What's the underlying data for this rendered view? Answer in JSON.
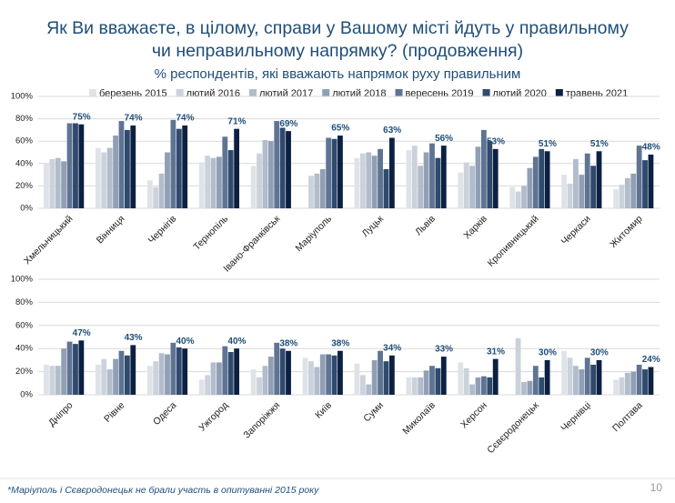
{
  "header": {
    "title": [
      "Як Ви вважаєте, в цілому, справи у Вашому місті йдуть у правильному",
      "чи неправильному напрямку? (продовження)"
    ],
    "subtitle": "% респондентів, які вважають напрямок руху правильним"
  },
  "chart_data": [
    {
      "type": "bar",
      "ylim": [
        0,
        100
      ],
      "yticks": [
        {
          "value": 0,
          "label": "0%"
        },
        {
          "value": 20,
          "label": "20%"
        },
        {
          "value": 40,
          "label": "40%"
        },
        {
          "value": 60,
          "label": "60%"
        },
        {
          "value": 80,
          "label": "80%"
        },
        {
          "value": 100,
          "label": "100%"
        }
      ],
      "categories": [
        "Хмельницький",
        "Вінниця",
        "Чернігів",
        "Тернопіль",
        "Івано-Франківськ",
        "Маріуполь",
        "Луцьк",
        "Львів",
        "Харків",
        "Кропивницький",
        "Черкаси",
        "Житомир"
      ],
      "series": [
        {
          "name": "березень 2015",
          "color": "#dfe3e8",
          "values": [
            40,
            54,
            25,
            41,
            38,
            null,
            45,
            52,
            32,
            19,
            30,
            17
          ]
        },
        {
          "name": "лютий 2016",
          "color": "#cbd2db",
          "values": [
            44,
            50,
            19,
            47,
            49,
            29,
            49,
            56,
            41,
            15,
            22,
            21
          ]
        },
        {
          "name": "лютий 2017",
          "color": "#b2bccb",
          "values": [
            45,
            54,
            31,
            45,
            61,
            31,
            50,
            38,
            38,
            20,
            44,
            27
          ]
        },
        {
          "name": "лютий 2018",
          "color": "#919fb4",
          "values": [
            42,
            65,
            50,
            46,
            60,
            35,
            47,
            50,
            55,
            36,
            30,
            31
          ]
        },
        {
          "name": "вересень 2019",
          "color": "#5f7493",
          "values": [
            76,
            78,
            79,
            64,
            78,
            63,
            53,
            58,
            70,
            46,
            49,
            56
          ]
        },
        {
          "name": "лютий 2020",
          "color": "#2f4a6d",
          "values": [
            76,
            70,
            71,
            52,
            72,
            62,
            35,
            45,
            60,
            53,
            38,
            43
          ]
        },
        {
          "name": "травень 2021",
          "color": "#0c2042",
          "values": [
            75,
            74,
            74,
            71,
            69,
            65,
            63,
            56,
            53,
            51,
            51,
            48
          ],
          "value_labels": [
            "75%",
            "74%",
            "74%",
            "71%",
            "69%",
            "65%",
            "63%",
            "56%",
            "53%",
            "51%",
            "51%",
            "48%"
          ]
        }
      ]
    },
    {
      "type": "bar",
      "ylim": [
        0,
        100
      ],
      "yticks": [
        {
          "value": 0,
          "label": "0%"
        },
        {
          "value": 20,
          "label": "20%"
        },
        {
          "value": 40,
          "label": "40%"
        },
        {
          "value": 60,
          "label": "60%"
        },
        {
          "value": 80,
          "label": "80%"
        },
        {
          "value": 100,
          "label": "100%"
        }
      ],
      "categories": [
        "Дніпро",
        "Рівне",
        "Одеса",
        "Ужгород",
        "Запоріжжя",
        "Київ",
        "Суми",
        "Миколаїв",
        "Херсон",
        "Сєвєродонецьк",
        "Чернівці",
        "Полтава"
      ],
      "series": [
        {
          "color": "#dfe3e8",
          "values": [
            26,
            26,
            25,
            13,
            22,
            32,
            27,
            15,
            28,
            null,
            38,
            13
          ]
        },
        {
          "color": "#cbd2db",
          "values": [
            25,
            31,
            29,
            17,
            15,
            29,
            17,
            15,
            23,
            49,
            32,
            15
          ]
        },
        {
          "color": "#b2bccb",
          "values": [
            25,
            22,
            36,
            28,
            25,
            24,
            9,
            15,
            9,
            11,
            25,
            19
          ]
        },
        {
          "color": "#919fb4",
          "values": [
            40,
            31,
            35,
            28,
            33,
            35,
            30,
            21,
            15,
            12,
            22,
            20
          ]
        },
        {
          "color": "#5f7493",
          "values": [
            46,
            38,
            45,
            42,
            45,
            35,
            38,
            25,
            16,
            25,
            32,
            26
          ]
        },
        {
          "color": "#2f4a6d",
          "values": [
            44,
            34,
            41,
            37,
            40,
            34,
            29,
            23,
            15,
            15,
            26,
            22
          ]
        },
        {
          "color": "#0c2042",
          "values": [
            47,
            43,
            40,
            40,
            38,
            38,
            34,
            33,
            31,
            30,
            30,
            24
          ],
          "value_labels": [
            "47%",
            "43%",
            "40%",
            "40%",
            "38%",
            "38%",
            "34%",
            "33%",
            "31%",
            "30%",
            "30%",
            "24%"
          ]
        }
      ]
    }
  ],
  "footnote": "*Маріуполь і Сєвєродонецьк не брали участь в опитуванні 2015 року",
  "page_number": "10"
}
